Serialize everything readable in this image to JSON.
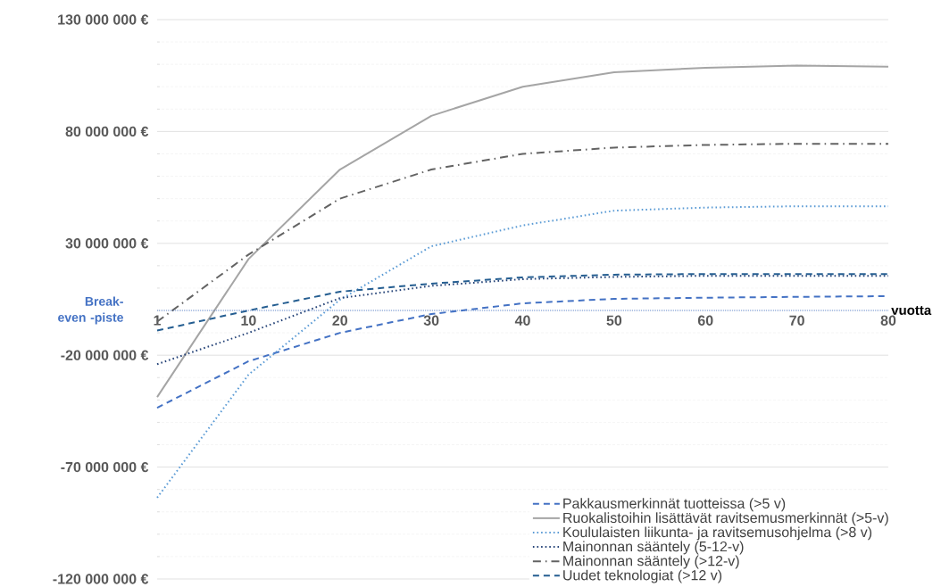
{
  "chart_data": {
    "type": "line",
    "xlabel": "vuotta",
    "categories": [
      "1",
      "10",
      "20",
      "30",
      "40",
      "50",
      "60",
      "70",
      "80"
    ],
    "ylim": [
      -120000000,
      130000000
    ],
    "yticks": [
      {
        "value": -120000000,
        "label": "-120 000 000 €"
      },
      {
        "value": -70000000,
        "label": "-70 000 000 €"
      },
      {
        "value": -20000000,
        "label": "-20 000 000 €"
      },
      {
        "value": 30000000,
        "label": "30 000 000 €"
      },
      {
        "value": 80000000,
        "label": "80 000 000 €"
      },
      {
        "value": 130000000,
        "label": "130 000 000 €"
      }
    ],
    "grid": "y",
    "legend": "bottom right",
    "marker": "none",
    "ref_lines": [
      {
        "axis": "y",
        "value": 0,
        "label": "Break-even -piste",
        "color": "#4472c4",
        "line_style": "dotted"
      }
    ],
    "series": [
      {
        "name": "Pakkausmerkinnät tuotteissa (>5 v)",
        "color": "#4472c4",
        "line_style": "dashed",
        "values": [
          -43500000,
          -22700000,
          -10000000,
          -1600000,
          3200000,
          5200000,
          5700000,
          6100000,
          6400000
        ]
      },
      {
        "name": "Ruokalistoihin lisättävät ravitsemusmerkinnät (>5-v)",
        "color": "#a5a5a5",
        "line_style": "solid",
        "values": [
          -38700000,
          23000000,
          63000000,
          87000000,
          100000000,
          106500000,
          108500000,
          109500000,
          109000000
        ]
      },
      {
        "name": "Koululaisten liikunta- ja ravitsemusohjelma (>8 v)",
        "color": "#5b9bd5",
        "line_style": "dotted",
        "values": [
          -83700000,
          -28700000,
          4800000,
          28700000,
          38000000,
          44600000,
          46000000,
          46600000,
          46600000
        ]
      },
      {
        "name": "Mainonnan sääntely (5-12-v)",
        "color": "#264478",
        "line_style": "dotted",
        "values": [
          -24000000,
          -10000000,
          5500000,
          11000000,
          14000000,
          15000000,
          15500000,
          15500000,
          15500000
        ]
      },
      {
        "name": "Mainonnan sääntely (>12-v)",
        "color": "#636363",
        "line_style": "dashdot",
        "values": [
          -5000000,
          25000000,
          50000000,
          63000000,
          70000000,
          72800000,
          74000000,
          74500000,
          74500000
        ]
      },
      {
        "name": "Uudet teknologiat (>12 v)",
        "color": "#255e91",
        "line_style": "dashed",
        "values": [
          -9000000,
          0,
          8400000,
          12000000,
          14800000,
          16000000,
          16300000,
          16300000,
          16300000
        ]
      }
    ]
  }
}
